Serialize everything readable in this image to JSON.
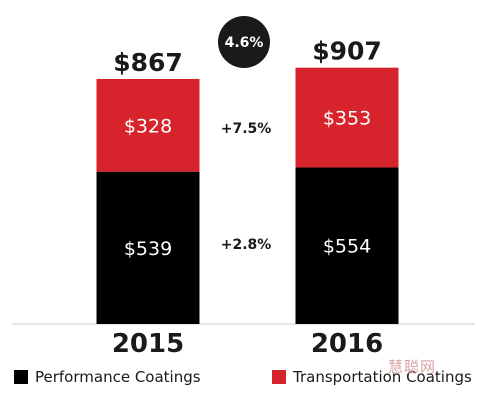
{
  "chart_data": {
    "type": "bar",
    "stacked": true,
    "categories": [
      "2015",
      "2016"
    ],
    "series": [
      {
        "name": "Performance Coatings",
        "values": [
          539,
          554
        ],
        "labels": [
          "$539",
          "$554"
        ],
        "color": "#000000"
      },
      {
        "name": "Transportation Coatings",
        "values": [
          328,
          353
        ],
        "labels": [
          "$328",
          "$353"
        ],
        "color": "#d7232b"
      }
    ],
    "totals": [
      867,
      907
    ],
    "total_labels": [
      "$867",
      "$907"
    ],
    "growth": {
      "overall": "4.6%",
      "transportation": "+7.5%",
      "performance": "+2.8%"
    },
    "legend_position": "bottom",
    "grid": false
  },
  "watermark": "慧聪网"
}
